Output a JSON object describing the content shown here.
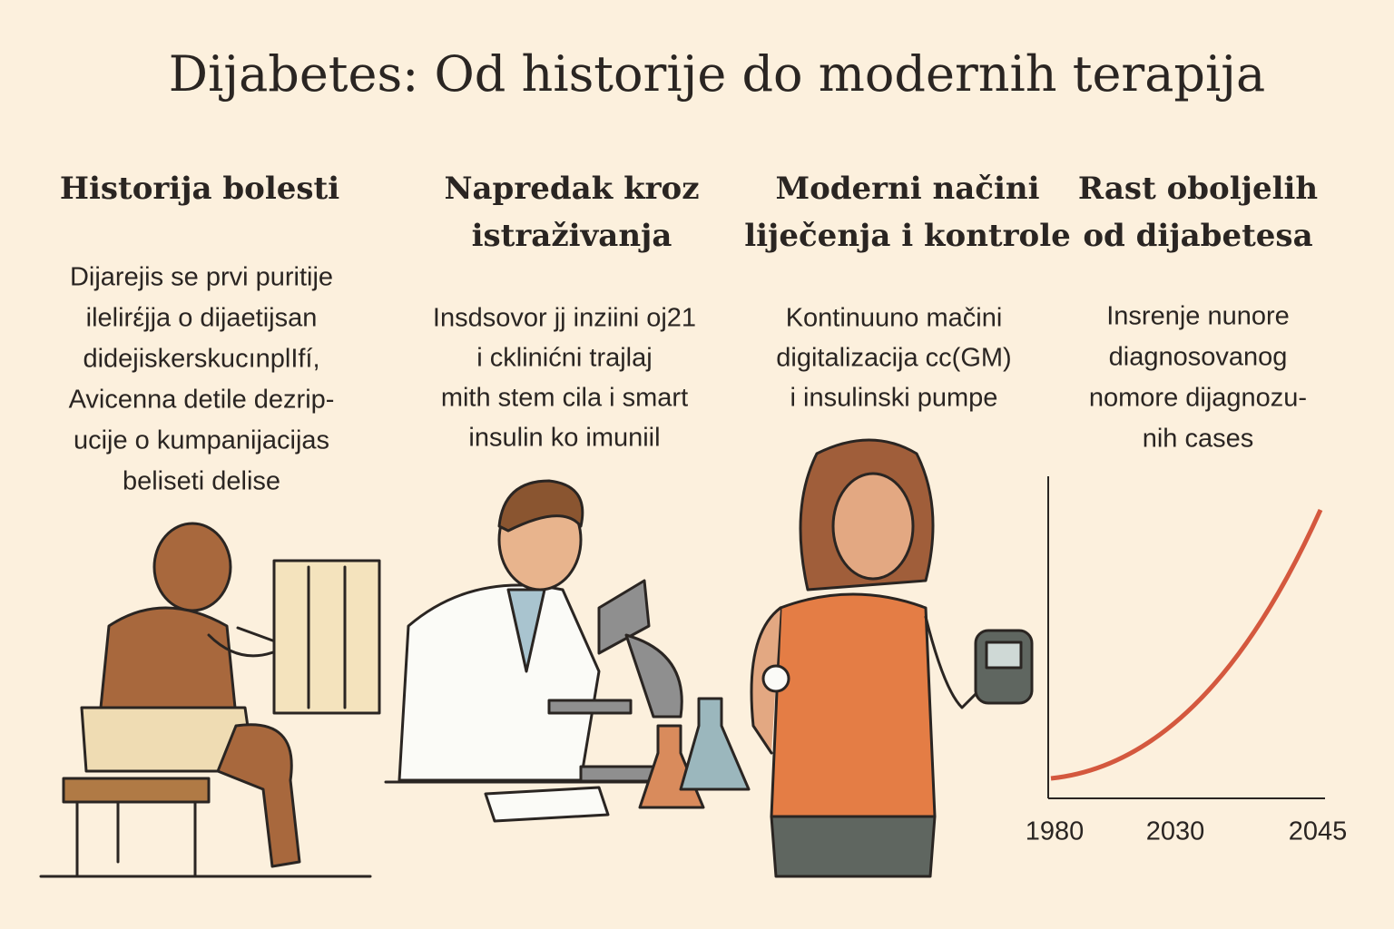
{
  "title": "Dijabetes: Od historije do modernih terapija",
  "sections": [
    {
      "heading": [
        "Historija bolesti"
      ],
      "text": [
        "Dijarejis se prvi puritije",
        "ilelirέjja o dijaetijsan",
        "didejiskerskucınplIfí,",
        "Avicenna detile dezrip-",
        "ucije o kumpanijacijas",
        "beliseti delise"
      ]
    },
    {
      "heading": [
        "Napredak kroz",
        "istraživanja"
      ],
      "text": [
        "Insdsovor jj inziini oj21",
        "i cklinićni trajlaj",
        "mith stem cila i smart",
        "insulin ko imuniil"
      ]
    },
    {
      "heading": [
        "Moderni načini",
        "liječenja i kontrole"
      ],
      "text": [
        "Kontinuuno mačini",
        "digitalizacija cc(GM)",
        "i insulinski pumpe"
      ]
    },
    {
      "heading": [
        "Rast oboljelih",
        "od dijabetesa"
      ],
      "text": [
        "Insrenje nunore",
        "diagnosovanog",
        "nomore dijagnozu-",
        "nih cases"
      ]
    }
  ],
  "axis_labels": [
    "1980",
    "2030",
    "2045"
  ]
}
